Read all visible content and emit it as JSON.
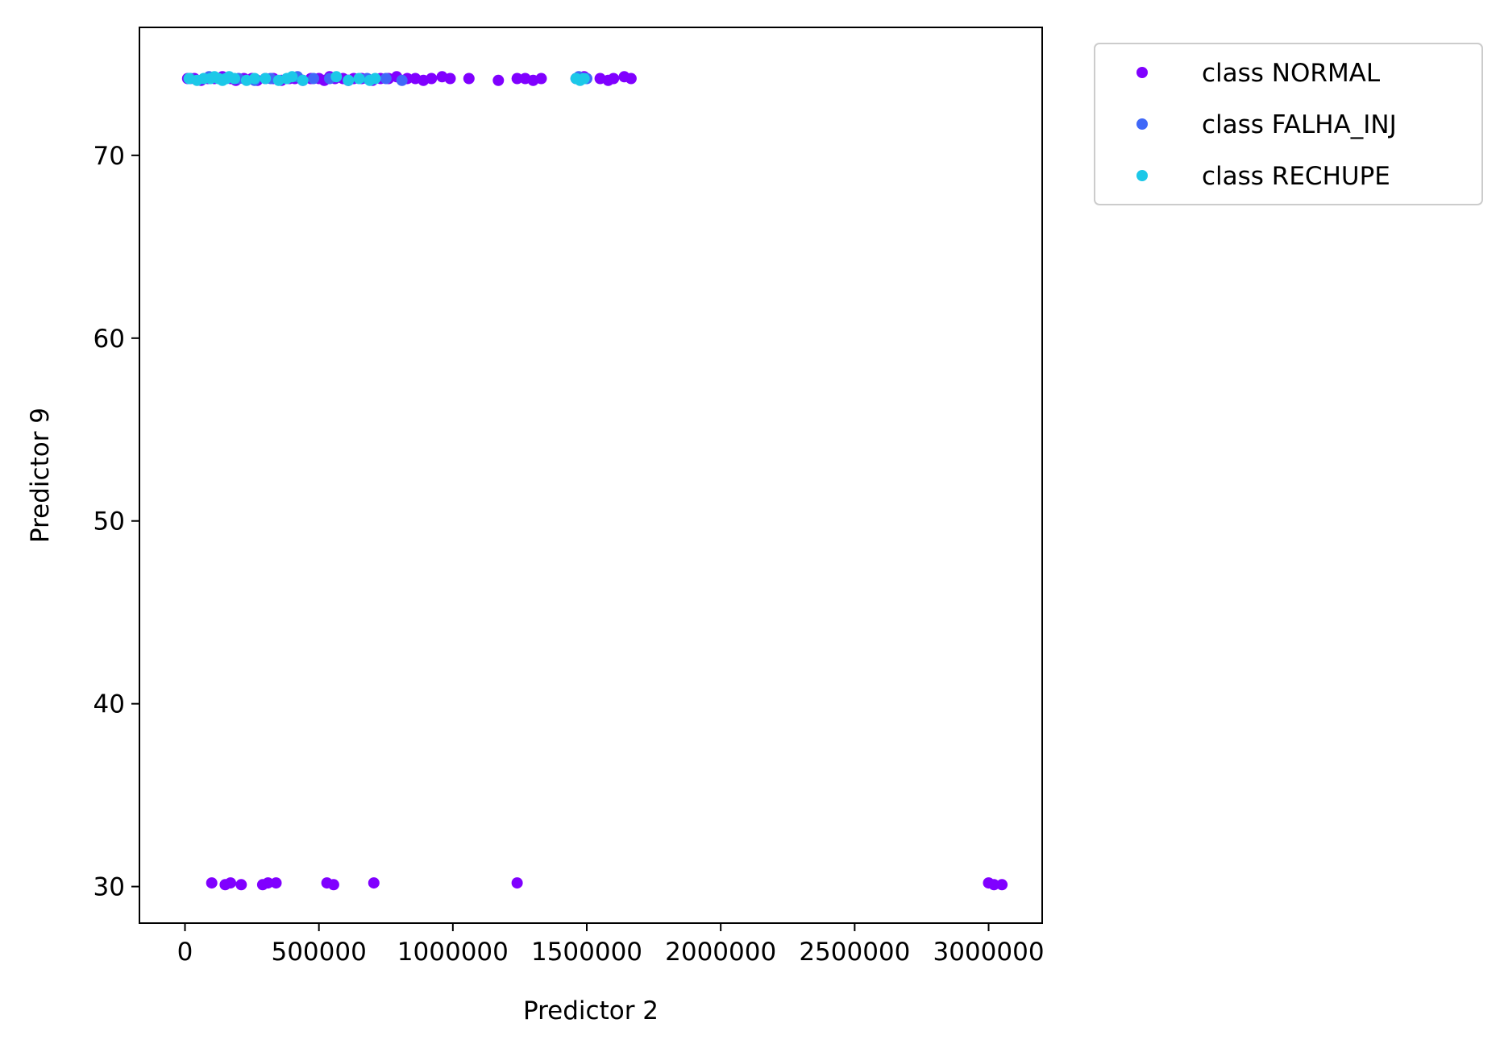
{
  "chart_data": {
    "type": "scatter",
    "title": "",
    "xlabel": "Predictor 2",
    "ylabel": "Predictor 9",
    "xlim": [
      -170000,
      3200000
    ],
    "ylim": [
      28,
      77
    ],
    "xticks": [
      0,
      500000,
      1000000,
      1500000,
      2000000,
      2500000,
      3000000
    ],
    "xtick_labels": [
      "0",
      "500000",
      "1000000",
      "1500000",
      "2000000",
      "2500000",
      "3000000"
    ],
    "yticks": [
      30,
      40,
      50,
      60,
      70
    ],
    "ytick_labels": [
      "30",
      "40",
      "50",
      "60",
      "70"
    ],
    "grid": false,
    "legend_position": "outside-top-right",
    "series": [
      {
        "name": "class NORMAL",
        "color": "#8000ff",
        "points": [
          [
            10000,
            74.2
          ],
          [
            35000,
            74.2
          ],
          [
            60000,
            74.1
          ],
          [
            85000,
            74.2
          ],
          [
            110000,
            74.2
          ],
          [
            140000,
            74.3
          ],
          [
            170000,
            74.2
          ],
          [
            190000,
            74.1
          ],
          [
            220000,
            74.2
          ],
          [
            250000,
            74.2
          ],
          [
            270000,
            74.1
          ],
          [
            300000,
            74.2
          ],
          [
            330000,
            74.2
          ],
          [
            360000,
            74.1
          ],
          [
            390000,
            74.2
          ],
          [
            410000,
            74.2
          ],
          [
            440000,
            74.1
          ],
          [
            470000,
            74.2
          ],
          [
            500000,
            74.2
          ],
          [
            520000,
            74.1
          ],
          [
            540000,
            74.3
          ],
          [
            560000,
            74.2
          ],
          [
            590000,
            74.2
          ],
          [
            610000,
            74.1
          ],
          [
            630000,
            74.2
          ],
          [
            660000,
            74.2
          ],
          [
            700000,
            74.1
          ],
          [
            730000,
            74.2
          ],
          [
            760000,
            74.2
          ],
          [
            790000,
            74.3
          ],
          [
            830000,
            74.2
          ],
          [
            860000,
            74.2
          ],
          [
            890000,
            74.1
          ],
          [
            920000,
            74.2
          ],
          [
            960000,
            74.3
          ],
          [
            990000,
            74.2
          ],
          [
            1060000,
            74.2
          ],
          [
            1170000,
            74.1
          ],
          [
            1240000,
            74.2
          ],
          [
            1270000,
            74.2
          ],
          [
            1300000,
            74.1
          ],
          [
            1330000,
            74.2
          ],
          [
            1460000,
            74.2
          ],
          [
            1490000,
            74.3
          ],
          [
            1550000,
            74.2
          ],
          [
            1580000,
            74.1
          ],
          [
            1600000,
            74.2
          ],
          [
            1640000,
            74.3
          ],
          [
            1665000,
            74.2
          ],
          [
            100000,
            30.2
          ],
          [
            150000,
            30.1
          ],
          [
            170000,
            30.2
          ],
          [
            210000,
            30.1
          ],
          [
            290000,
            30.1
          ],
          [
            310000,
            30.2
          ],
          [
            340000,
            30.2
          ],
          [
            530000,
            30.2
          ],
          [
            555000,
            30.1
          ],
          [
            705000,
            30.2
          ],
          [
            1240000,
            30.2
          ],
          [
            3000000,
            30.2
          ],
          [
            3020000,
            30.1
          ],
          [
            3050000,
            30.1
          ]
        ]
      },
      {
        "name": "class FALHA_INJ",
        "color": "#4068f8",
        "points": [
          [
            20000,
            74.2
          ],
          [
            90000,
            74.3
          ],
          [
            150000,
            74.2
          ],
          [
            200000,
            74.2
          ],
          [
            260000,
            74.1
          ],
          [
            320000,
            74.2
          ],
          [
            420000,
            74.3
          ],
          [
            480000,
            74.2
          ],
          [
            540000,
            74.2
          ],
          [
            610000,
            74.1
          ],
          [
            680000,
            74.2
          ],
          [
            750000,
            74.2
          ],
          [
            810000,
            74.1
          ],
          [
            1470000,
            74.3
          ],
          [
            1480000,
            74.2
          ],
          [
            1500000,
            74.2
          ]
        ]
      },
      {
        "name": "class RECHUPE",
        "color": "#1cc8e8",
        "points": [
          [
            15000,
            74.2
          ],
          [
            45000,
            74.1
          ],
          [
            70000,
            74.2
          ],
          [
            95000,
            74.2
          ],
          [
            110000,
            74.3
          ],
          [
            125000,
            74.2
          ],
          [
            140000,
            74.1
          ],
          [
            155000,
            74.2
          ],
          [
            165000,
            74.3
          ],
          [
            185000,
            74.2
          ],
          [
            230000,
            74.1
          ],
          [
            260000,
            74.2
          ],
          [
            300000,
            74.2
          ],
          [
            350000,
            74.1
          ],
          [
            380000,
            74.2
          ],
          [
            400000,
            74.3
          ],
          [
            440000,
            74.1
          ],
          [
            565000,
            74.3
          ],
          [
            610000,
            74.1
          ],
          [
            650000,
            74.2
          ],
          [
            690000,
            74.1
          ],
          [
            710000,
            74.2
          ],
          [
            1460000,
            74.2
          ],
          [
            1475000,
            74.1
          ],
          [
            1490000,
            74.2
          ]
        ]
      }
    ]
  }
}
